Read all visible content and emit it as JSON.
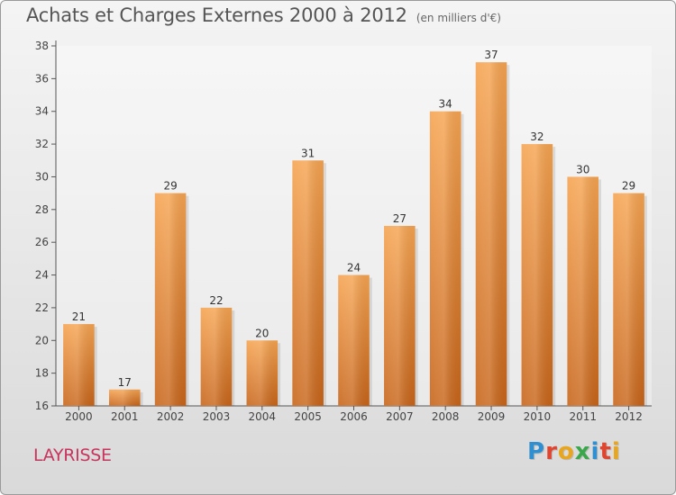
{
  "header": {
    "title": "Achats et Charges Externes 2000 à 2012",
    "subtitle": "(en milliers d'€)"
  },
  "footer": {
    "place": "LAYRISSE",
    "logo_letters": [
      "P",
      "r",
      "o",
      "x",
      "i",
      "t",
      "i"
    ],
    "logo_colors": [
      "#2f8fd0",
      "#e0452f",
      "#e9a51b",
      "#3aa84a",
      "#2f8fd0",
      "#e0452f",
      "#e9a51b"
    ]
  },
  "colors": {
    "bar_top": "#f6a451",
    "bar_bottom": "#c8651a",
    "place_text": "#c8345c"
  },
  "chart_data": {
    "type": "bar",
    "title": "Achats et Charges Externes 2000 à 2012",
    "subtitle": "(en milliers d'€)",
    "xlabel": "",
    "ylabel": "",
    "categories": [
      "2000",
      "2001",
      "2002",
      "2003",
      "2004",
      "2005",
      "2006",
      "2007",
      "2008",
      "2009",
      "2010",
      "2011",
      "2012"
    ],
    "values": [
      21,
      17,
      29,
      22,
      20,
      31,
      24,
      27,
      34,
      37,
      32,
      30,
      29
    ],
    "ylim": [
      16,
      38
    ],
    "yticks": [
      16,
      18,
      20,
      22,
      24,
      26,
      28,
      30,
      32,
      34,
      36,
      38
    ],
    "grid": false,
    "data_labels": true
  }
}
